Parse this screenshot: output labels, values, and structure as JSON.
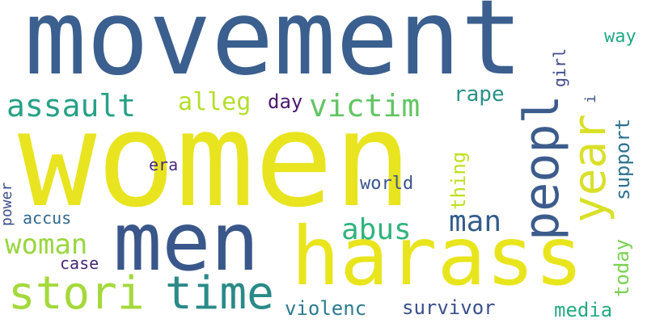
{
  "words": [
    {
      "text": "movement",
      "color": "#3b5f8e",
      "rotate": false
    },
    {
      "text": "women",
      "color": "#e8e41f",
      "rotate": false
    },
    {
      "text": "men",
      "color": "#39578a",
      "rotate": false
    },
    {
      "text": "harass",
      "color": "#e9e51d",
      "rotate": false
    },
    {
      "text": "stori",
      "color": "#a4d93b",
      "rotate": false
    },
    {
      "text": "time",
      "color": "#2a8a88",
      "rotate": false
    },
    {
      "text": "peopl",
      "color": "#3c5c8c",
      "rotate": true
    },
    {
      "text": "year",
      "color": "#d9e02a",
      "rotate": true
    },
    {
      "text": "assault",
      "color": "#26a186",
      "rotate": false
    },
    {
      "text": "victim",
      "color": "#62c563",
      "rotate": false
    },
    {
      "text": "woman",
      "color": "#9ad640",
      "rotate": false
    },
    {
      "text": "man",
      "color": "#335d8b",
      "rotate": false
    },
    {
      "text": "abus",
      "color": "#30b37e",
      "rotate": false
    },
    {
      "text": "alleg",
      "color": "#b4de2c",
      "rotate": false
    },
    {
      "text": "violenc",
      "color": "#2b7b8e",
      "rotate": false
    },
    {
      "text": "survivor",
      "color": "#3a5089",
      "rotate": false
    },
    {
      "text": "rape",
      "color": "#2a9089",
      "rotate": false
    },
    {
      "text": "day",
      "color": "#481a6c",
      "rotate": false
    },
    {
      "text": "media",
      "color": "#24aa83",
      "rotate": false
    },
    {
      "text": "support",
      "color": "#2d728e",
      "rotate": true
    },
    {
      "text": "today",
      "color": "#7ad151",
      "rotate": true
    },
    {
      "text": "thing",
      "color": "#c2df23",
      "rotate": true
    },
    {
      "text": "world",
      "color": "#3a548c",
      "rotate": false
    },
    {
      "text": "accus",
      "color": "#31688e",
      "rotate": false
    },
    {
      "text": "case",
      "color": "#482677",
      "rotate": false
    },
    {
      "text": "era",
      "color": "#472c7a",
      "rotate": false
    },
    {
      "text": "power",
      "color": "#3c4f8a",
      "rotate": true
    },
    {
      "text": "girl",
      "color": "#3e4989",
      "rotate": true
    },
    {
      "text": "way",
      "color": "#22a884",
      "rotate": false
    },
    {
      "text": "i",
      "color": "#3b528b",
      "rotate": true
    }
  ]
}
